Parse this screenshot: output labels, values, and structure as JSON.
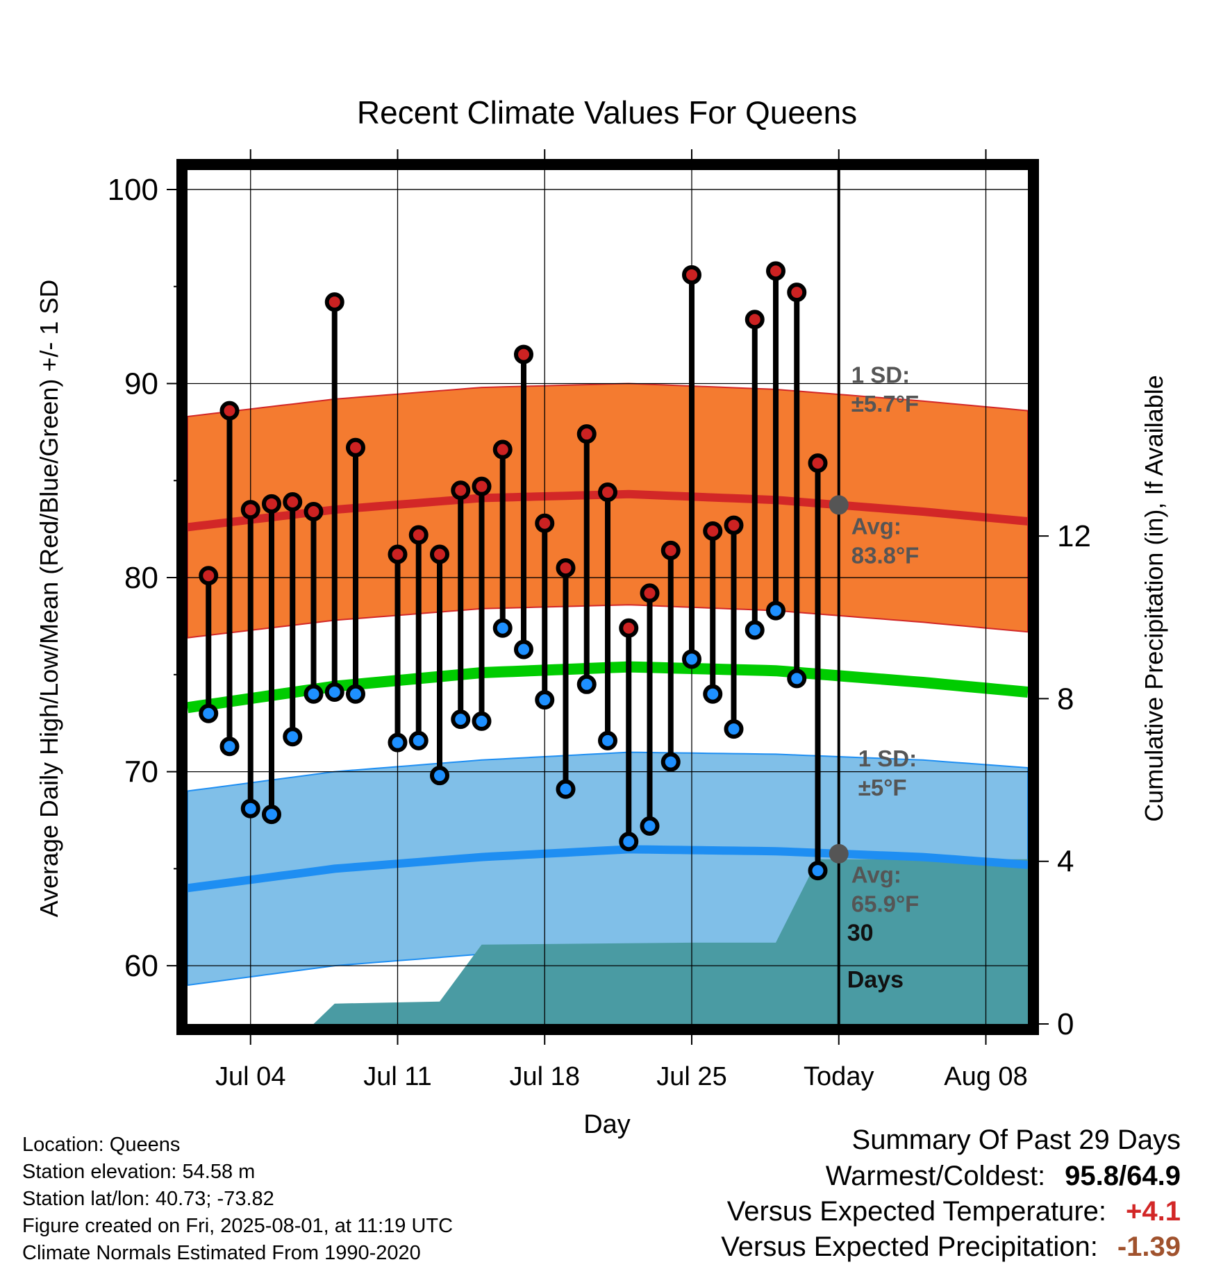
{
  "chart_data": {
    "type": "range",
    "title": "Recent Climate Values For Queens",
    "xlabel": "Day",
    "ylabel_left": "Average Daily High/Low/Mean (Red/Blue/Green) +/- 1 SD",
    "ylabel_right": "Cumulative Precipitation (in), If Available",
    "ylim": [
      57,
      101
    ],
    "y_ticks": [
      60,
      70,
      80,
      90,
      100
    ],
    "y2lim": [
      0,
      21
    ],
    "y2_ticks": [
      0,
      4,
      8,
      12
    ],
    "x_ticks": [
      {
        "date": "2025-07-04",
        "label": "Jul 04"
      },
      {
        "date": "2025-07-11",
        "label": "Jul 11"
      },
      {
        "date": "2025-07-18",
        "label": "Jul 18"
      },
      {
        "date": "2025-07-25",
        "label": "Jul 25"
      },
      {
        "date": "2025-08-01",
        "label": "Today"
      },
      {
        "date": "2025-08-08",
        "label": "Aug 08"
      }
    ],
    "xlim": [
      "2025-07-01",
      "2025-08-10"
    ],
    "today": "2025-08-01",
    "grid": true,
    "daily": [
      {
        "date": "2025-07-02",
        "high": 80.1,
        "low": 73.0
      },
      {
        "date": "2025-07-03",
        "high": 88.6,
        "low": 71.3
      },
      {
        "date": "2025-07-04",
        "high": 83.5,
        "low": 68.1
      },
      {
        "date": "2025-07-05",
        "high": 83.8,
        "low": 67.8
      },
      {
        "date": "2025-07-06",
        "high": 83.9,
        "low": 71.8
      },
      {
        "date": "2025-07-07",
        "high": 83.4,
        "low": 74.0
      },
      {
        "date": "2025-07-08",
        "high": 94.2,
        "low": 74.1
      },
      {
        "date": "2025-07-09",
        "high": 86.7,
        "low": 74.0
      },
      {
        "date": "2025-07-11",
        "high": 81.2,
        "low": 71.5
      },
      {
        "date": "2025-07-12",
        "high": 82.2,
        "low": 71.6
      },
      {
        "date": "2025-07-13",
        "high": 81.2,
        "low": 69.8
      },
      {
        "date": "2025-07-14",
        "high": 84.5,
        "low": 72.7
      },
      {
        "date": "2025-07-15",
        "high": 84.7,
        "low": 72.6
      },
      {
        "date": "2025-07-16",
        "high": 86.6,
        "low": 77.4
      },
      {
        "date": "2025-07-17",
        "high": 91.5,
        "low": 76.3
      },
      {
        "date": "2025-07-18",
        "high": 82.8,
        "low": 73.7
      },
      {
        "date": "2025-07-19",
        "high": 80.5,
        "low": 69.1
      },
      {
        "date": "2025-07-20",
        "high": 87.4,
        "low": 74.5
      },
      {
        "date": "2025-07-21",
        "high": 84.4,
        "low": 71.6
      },
      {
        "date": "2025-07-22",
        "high": 77.4,
        "low": 66.4
      },
      {
        "date": "2025-07-23",
        "high": 79.2,
        "low": 67.2
      },
      {
        "date": "2025-07-24",
        "high": 81.4,
        "low": 70.5
      },
      {
        "date": "2025-07-25",
        "high": 95.6,
        "low": 75.8
      },
      {
        "date": "2025-07-26",
        "high": 82.4,
        "low": 74.0
      },
      {
        "date": "2025-07-27",
        "high": 82.7,
        "low": 72.2
      },
      {
        "date": "2025-07-28",
        "high": 93.3,
        "low": 77.3
      },
      {
        "date": "2025-07-29",
        "high": 95.8,
        "low": 78.3
      },
      {
        "date": "2025-07-30",
        "high": 94.7,
        "low": 74.8
      },
      {
        "date": "2025-07-31",
        "high": 85.9,
        "low": 64.9
      }
    ],
    "normals": {
      "dates": [
        "2025-07-01",
        "2025-07-08",
        "2025-07-15",
        "2025-07-22",
        "2025-07-29",
        "2025-08-05",
        "2025-08-10"
      ],
      "avg_high": [
        82.6,
        83.5,
        84.1,
        84.3,
        84.0,
        83.4,
        82.9
      ],
      "avg_low": [
        64.0,
        65.0,
        65.6,
        66.0,
        65.9,
        65.6,
        65.2
      ],
      "avg_mean": [
        73.3,
        74.4,
        75.1,
        75.4,
        75.2,
        74.6,
        74.1
      ],
      "high_sd": 5.7,
      "low_sd": 5.0
    },
    "precip_cumulative": {
      "dates": [
        "2025-07-01",
        "2025-07-07",
        "2025-07-08",
        "2025-07-13",
        "2025-07-15",
        "2025-07-25",
        "2025-07-29",
        "2025-07-31",
        "2025-08-10"
      ],
      "values": [
        0,
        0,
        0.5,
        0.55,
        1.95,
        2.0,
        2.0,
        4.05,
        4.05
      ]
    },
    "annotations": {
      "high_sd_label": "1 SD:",
      "high_sd_value": "±5.7°F",
      "high_avg_label": "Avg:",
      "high_avg_value": "83.8°F",
      "low_sd_label": "1 SD:",
      "low_sd_value": "±5°F",
      "low_avg_label": "Avg:",
      "low_avg_value": "65.9°F",
      "precip_days_line1": "30",
      "precip_days_line2": "Days"
    },
    "colors": {
      "high_band": "#f47b30",
      "high_line": "#d22727",
      "low_band": "#80bfe8",
      "low_line": "#1e8ef2",
      "mean_line": "#00cc00",
      "precip": "#4a9ba3",
      "high_marker": "#cc2222",
      "low_marker": "#1e90ff",
      "annotation": "#555555",
      "warmer": "#d22727",
      "precip_diff": "#a0522d"
    }
  },
  "info": {
    "location": "Location: Queens",
    "elevation": "Station elevation: 54.58 m",
    "latlon": "Station lat/lon: 40.73; -73.82",
    "created": "Figure created on Fri, 2025-08-01, at 11:19 UTC",
    "normals": "Climate Normals Estimated From 1990-2020"
  },
  "summary": {
    "title": "Summary Of Past 29 Days",
    "warm_cold_label": "Warmest/Coldest:",
    "warm_cold_value": "95.8/64.9",
    "temp_label": "Versus Expected Temperature:",
    "temp_value": "+4.1",
    "precip_label": "Versus Expected Precipitation:",
    "precip_value": "-1.39"
  }
}
